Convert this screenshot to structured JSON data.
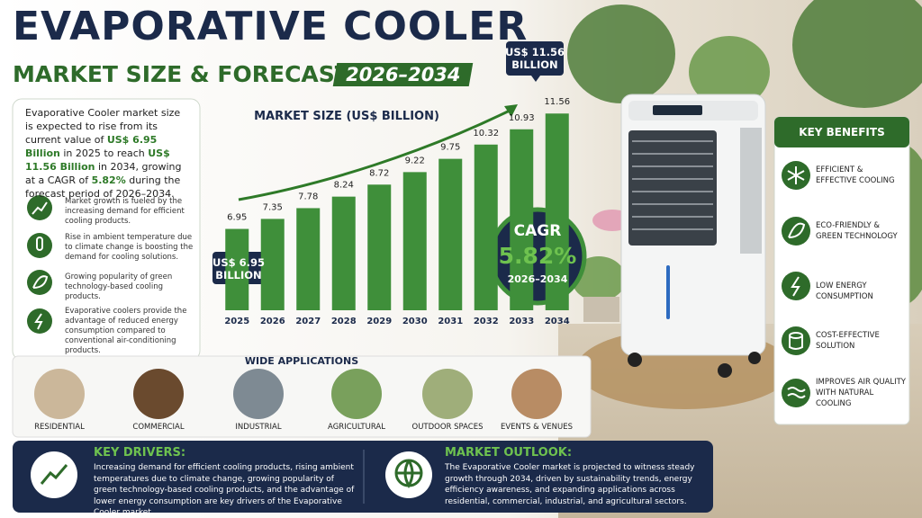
{
  "header": {
    "title_line1": "EVAPORATIVE COOLER",
    "title_line2": "MARKET SIZE & FORECAST",
    "years": "2026–2034"
  },
  "intro": {
    "segments": [
      {
        "text": "Evaporative Cooler market size is expected to rise from its current value of ",
        "highlight": false
      },
      {
        "text": "US$ 6.95 Billion",
        "highlight": true
      },
      {
        "text": " in 2025 to reach ",
        "highlight": false
      },
      {
        "text": "US$ 11.56 Billion",
        "highlight": true
      },
      {
        "text": " in 2034, growing at a CAGR of ",
        "highlight": false
      },
      {
        "text": "5.82%",
        "highlight": true
      },
      {
        "text": " during the forecast period of 2026–2034.",
        "highlight": false
      }
    ]
  },
  "drivers": [
    "Market growth is fueled by the increasing demand for efficient cooling products.",
    "Rise in ambient temperature due to climate change is boosting the demand for cooling solutions.",
    "Growing popularity of green technology-based cooling products.",
    "Evaporative coolers provide the advantage of reduced energy consumption compared to conventional air-conditioning products."
  ],
  "chart_data": {
    "type": "bar",
    "title": "MARKET SIZE (US$ BILLION)",
    "categories": [
      "2025",
      "2026",
      "2027",
      "2028",
      "2029",
      "2030",
      "2031",
      "2032",
      "2033",
      "2034"
    ],
    "values": [
      6.95,
      7.35,
      7.78,
      8.24,
      8.72,
      9.22,
      9.75,
      10.32,
      10.93,
      11.56
    ],
    "color": "#3f8f3a",
    "ylim": [
      3.7,
      12
    ],
    "annotations": {
      "start": [
        "US$ 6.95",
        "BILLION"
      ],
      "end": [
        "US$ 11.56",
        "BILLION"
      ]
    }
  },
  "cagr": {
    "label": "CAGR",
    "value": "5.82%",
    "period": "2026–2034"
  },
  "applications": {
    "title": "WIDE APPLICATIONS",
    "items": [
      "RESIDENTIAL",
      "COMMERCIAL",
      "INDUSTRIAL",
      "AGRICULTURAL",
      "OUTDOOR SPACES",
      "EVENTS & VENUES"
    ]
  },
  "benefits": {
    "title": "KEY BENEFITS",
    "items": [
      "EFFICIENT & EFFECTIVE COOLING",
      "ECO-FRIENDLY & GREEN TECHNOLOGY",
      "LOW ENERGY CONSUMPTION",
      "COST-EFFECTIVE SOLUTION",
      "IMPROVES AIR QUALITY WITH NATURAL COOLING"
    ]
  },
  "footer": {
    "drivers_title": "KEY DRIVERS:",
    "drivers_text": "Increasing demand for efficient cooling products, rising ambient temperatures due to climate change, growing popularity of green technology-based cooling products, and the advantage of lower energy consumption are key drivers of the Evaporative Cooler market.",
    "outlook_title": "MARKET OUTLOOK:",
    "outlook_text": "The Evaporative Cooler market is projected to witness steady growth through 2034, driven by sustainability trends, energy efficiency awareness, and expanding applications across residential, commercial, industrial, and agricultural sectors."
  }
}
